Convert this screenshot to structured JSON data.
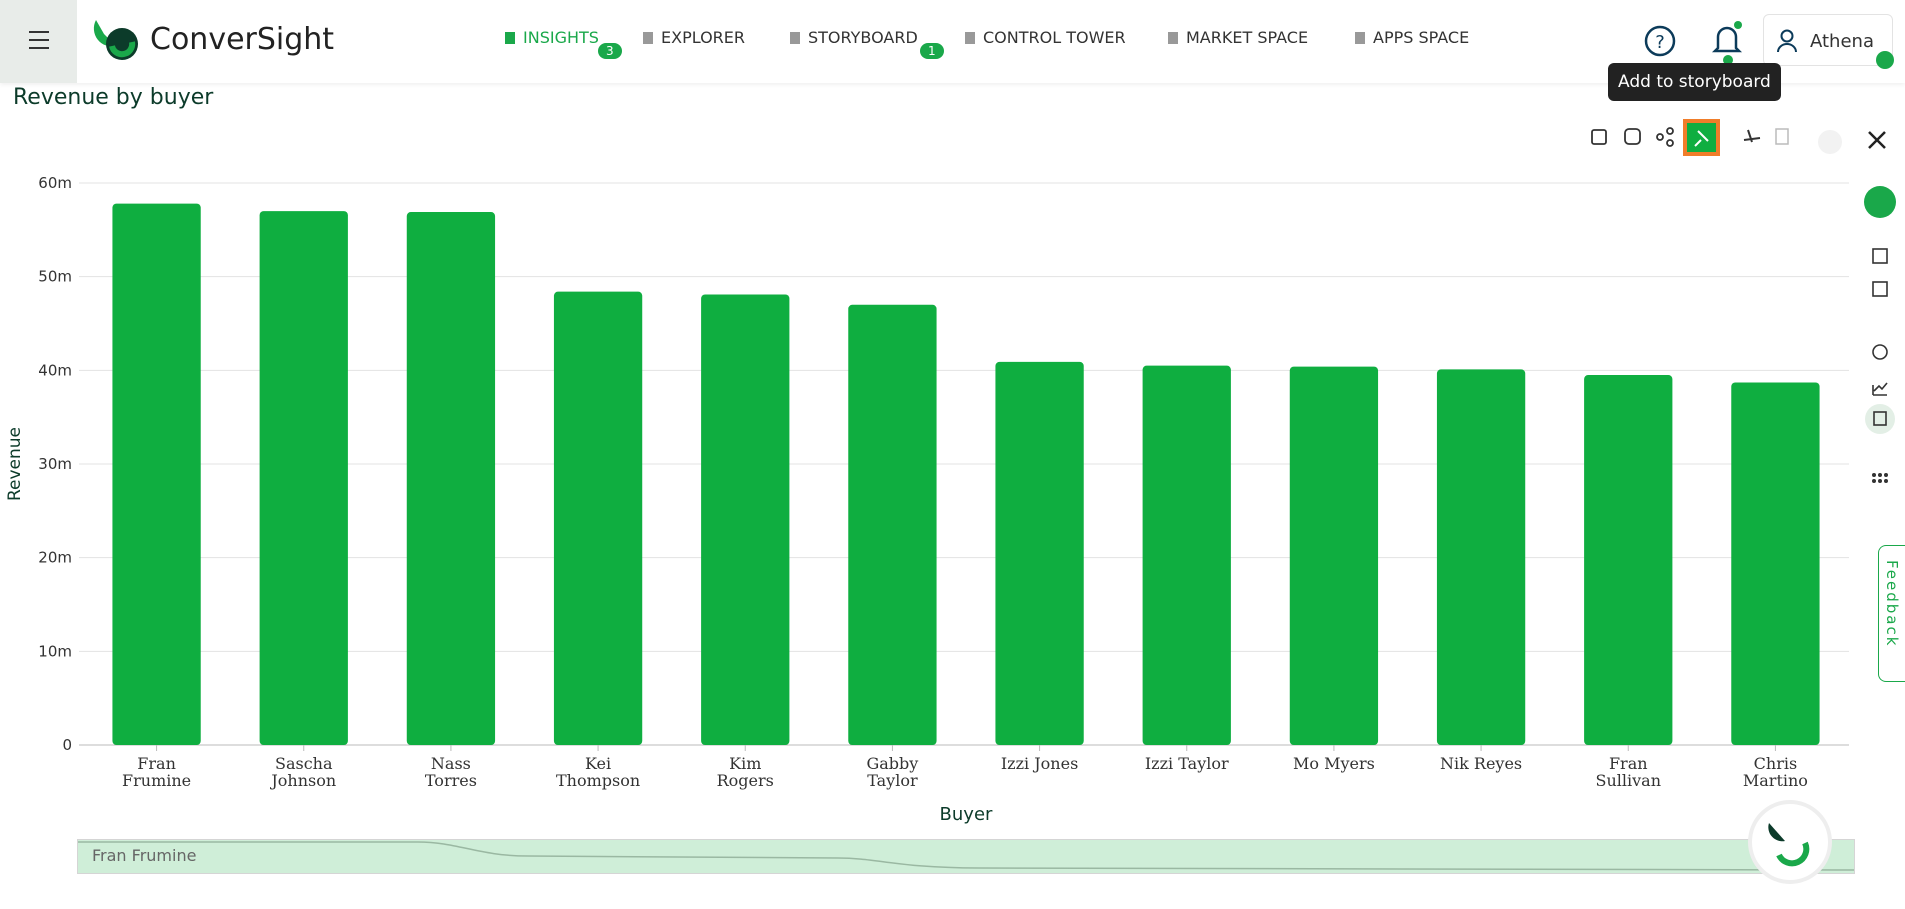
{
  "header": {
    "logo": "ConverSight",
    "nav": [
      {
        "label": "INSIGHTS",
        "badge": "3"
      },
      {
        "label": "EXPLORER"
      },
      {
        "label": "STORYBOARD",
        "badge": "1"
      },
      {
        "label": "CONTROL TOWER"
      },
      {
        "label": "MARKET SPACE"
      },
      {
        "label": "APPS SPACE"
      }
    ],
    "user": "Athena"
  },
  "tooltip": "Add to storyboard",
  "feedback": "Feedback",
  "slider": {
    "start": "Fran Frumine"
  },
  "chart_data": {
    "type": "bar",
    "title": "Revenue by buyer",
    "x_label": "Buyer",
    "y_label": "Revenue",
    "categories": [
      "Fran Frumine",
      "Sascha Johnson",
      "Nass Torres",
      "Kei Thompson",
      "Kim Rogers",
      "Gabby Taylor",
      "Izzi Jones",
      "Izzi Taylor",
      "Mo Myers",
      "Nik Reyes",
      "Fran Sullivan",
      "Chris Martino"
    ],
    "values": [
      57.8,
      57.0,
      56.9,
      48.4,
      48.1,
      47.0,
      40.9,
      40.5,
      40.4,
      40.1,
      39.5,
      38.7
    ],
    "color": "#0fae40",
    "ylim": [
      0,
      60
    ],
    "yticks": [
      0,
      {
        "value": 10,
        "label": "10m"
      },
      {
        "value": 20,
        "label": "20m"
      },
      {
        "value": 30,
        "label": "30m"
      },
      {
        "value": 40,
        "label": "40m"
      },
      {
        "value": 50,
        "label": "50m"
      },
      {
        "value": 60,
        "label": "60m"
      }
    ],
    "grid": true
  }
}
